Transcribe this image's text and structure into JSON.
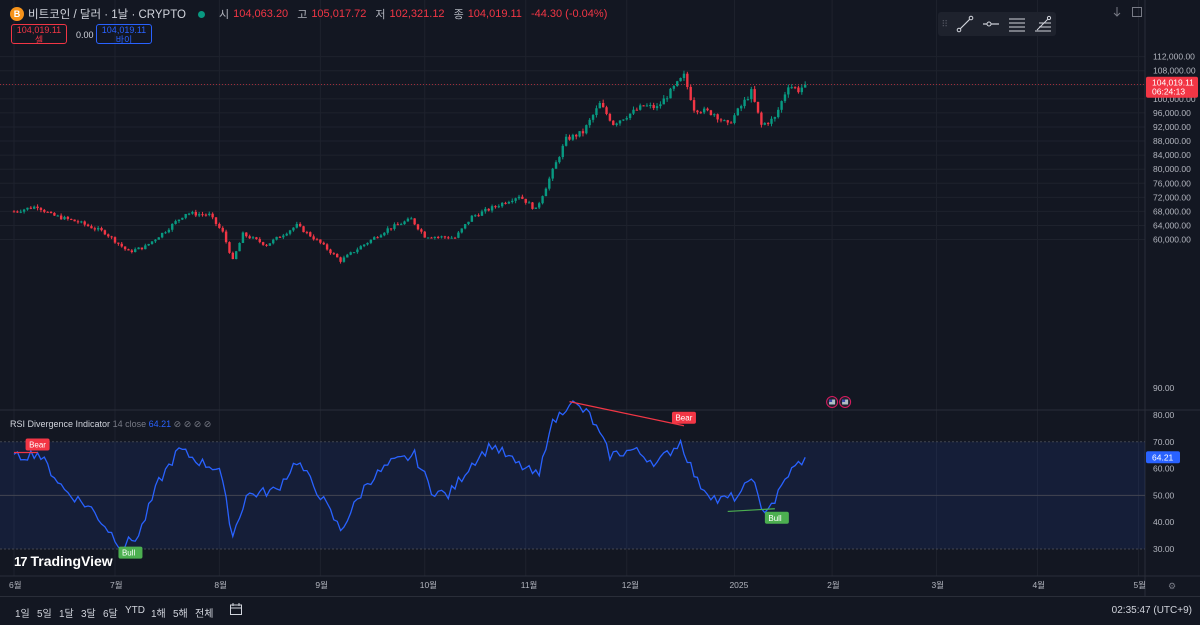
{
  "header": {
    "coin_glyph": "B",
    "symbol": "비트코인 / 달러 · 1날 · CRYPTO",
    "open_label": "시",
    "open": "104,063.20",
    "high_label": "고",
    "high": "105,017.72",
    "low_label": "저",
    "low": "102,321.12",
    "close_label": "종",
    "close": "104,019.11",
    "change": "-44.30 (-0.04%)"
  },
  "trade": {
    "sell_price": "104,019.11",
    "sell_label": "셀",
    "spread": "0.00",
    "buy_price": "104,019.11",
    "buy_label": "바이"
  },
  "toolbar": {
    "grip": "⠿",
    "tools": [
      "trend-line-icon",
      "horizontal-ray-icon",
      "parallel-lines-icon",
      "fib-retracement-icon"
    ]
  },
  "window_icons": [
    "arrow-down-icon",
    "maximize-icon"
  ],
  "indicator": {
    "name": "RSI Divergence Indicator",
    "params": "14 close",
    "value": "64.21",
    "icons": "⊘ ⊘ ⊘ ⊘"
  },
  "logo": {
    "mark": "17",
    "text": "TradingView"
  },
  "bottom": {
    "ranges": [
      "1일",
      "5일",
      "1달",
      "3달",
      "6달",
      "YTD",
      "1해",
      "5해",
      "전체"
    ],
    "time": "02:35:47 (UTC+9)"
  },
  "colors": {
    "up": "#089981",
    "down": "#f23645",
    "rsi": "#2962ff",
    "bear": "#f23645",
    "bull": "#4caf50",
    "background": "#131722"
  },
  "chart_data": [
    {
      "type": "candlestick",
      "ylim": [
        56000,
        114000
      ],
      "y_ticks": [
        "112,000.00",
        "108,000.00",
        "104,000.00",
        "100,000.00",
        "96,000.00",
        "92,000.00",
        "88,000.00",
        "84,000.00",
        "80,000.00",
        "76,000.00",
        "72,000.00",
        "68,000.00",
        "64,000.00",
        "60,000.00"
      ],
      "x_ticks": [
        "6월",
        "7월",
        "8월",
        "9월",
        "10월",
        "11월",
        "12월",
        "2025",
        "2월",
        "3월",
        "4월",
        "5월"
      ],
      "last_price_label": "104,019.11",
      "countdown": "06:24:13",
      "events": [
        "us-flag-icon",
        "us-flag-icon"
      ],
      "anchors": [
        [
          "2024-06-01",
          68000
        ],
        [
          "2024-06-08",
          69500
        ],
        [
          "2024-06-12",
          67000
        ],
        [
          "2024-06-20",
          65000
        ],
        [
          "2024-06-28",
          62000
        ],
        [
          "2024-07-05",
          56500
        ],
        [
          "2024-07-10",
          58000
        ],
        [
          "2024-07-16",
          62500
        ],
        [
          "2024-07-22",
          67500
        ],
        [
          "2024-07-29",
          67000
        ],
        [
          "2024-08-02",
          62000
        ],
        [
          "2024-08-05",
          54000
        ],
        [
          "2024-08-08",
          61500
        ],
        [
          "2024-08-15",
          58500
        ],
        [
          "2024-08-24",
          64000
        ],
        [
          "2024-08-31",
          59000
        ],
        [
          "2024-09-06",
          54000
        ],
        [
          "2024-09-12",
          58000
        ],
        [
          "2024-09-20",
          63000
        ],
        [
          "2024-09-27",
          65800
        ],
        [
          "2024-10-01",
          61000
        ],
        [
          "2024-10-10",
          60500
        ],
        [
          "2024-10-15",
          66500
        ],
        [
          "2024-10-21",
          69000
        ],
        [
          "2024-10-29",
          72500
        ],
        [
          "2024-11-03",
          68500
        ],
        [
          "2024-11-06",
          75000
        ],
        [
          "2024-11-12",
          88500
        ],
        [
          "2024-11-17",
          90500
        ],
        [
          "2024-11-22",
          98500
        ],
        [
          "2024-11-26",
          93000
        ],
        [
          "2024-12-05",
          98000
        ],
        [
          "2024-12-09",
          97500
        ],
        [
          "2024-12-17",
          106500
        ],
        [
          "2024-12-20",
          97300
        ],
        [
          "2024-12-26",
          95800
        ],
        [
          "2024-12-30",
          92500
        ],
        [
          "2025-01-06",
          102000
        ],
        [
          "2025-01-09",
          92500
        ],
        [
          "2025-01-13",
          94500
        ],
        [
          "2025-01-17",
          104000
        ],
        [
          "2025-01-20",
          102500
        ],
        [
          "2025-01-22",
          104019
        ]
      ]
    },
    {
      "type": "line",
      "name": "RSI Divergence Indicator",
      "ylim": [
        30,
        90
      ],
      "y_ticks": [
        "90.00",
        "80.00",
        "70.00",
        "60.00",
        "50.00",
        "40.00",
        "30.00"
      ],
      "bands": {
        "upper": 70,
        "middle": 50,
        "lower": 30
      },
      "current": "64.21",
      "anchors": [
        [
          "2024-06-01",
          64
        ],
        [
          "2024-06-08",
          66
        ],
        [
          "2024-06-16",
          52
        ],
        [
          "2024-06-24",
          45
        ],
        [
          "2024-07-03",
          31
        ],
        [
          "2024-07-08",
          35
        ],
        [
          "2024-07-14",
          55
        ],
        [
          "2024-07-20",
          67
        ],
        [
          "2024-07-27",
          62
        ],
        [
          "2024-08-01",
          60
        ],
        [
          "2024-08-05",
          35
        ],
        [
          "2024-08-09",
          50
        ],
        [
          "2024-08-18",
          52
        ],
        [
          "2024-08-24",
          63
        ],
        [
          "2024-08-31",
          50
        ],
        [
          "2024-09-06",
          37
        ],
        [
          "2024-09-14",
          55
        ],
        [
          "2024-09-21",
          62
        ],
        [
          "2024-09-28",
          65
        ],
        [
          "2024-10-03",
          52
        ],
        [
          "2024-10-08",
          50
        ],
        [
          "2024-10-15",
          62
        ],
        [
          "2024-10-21",
          69
        ],
        [
          "2024-10-28",
          62
        ],
        [
          "2024-11-04",
          57
        ],
        [
          "2024-11-07",
          75
        ],
        [
          "2024-11-13",
          85
        ],
        [
          "2024-11-19",
          80
        ],
        [
          "2024-11-25",
          65
        ],
        [
          "2024-12-02",
          67
        ],
        [
          "2024-12-09",
          62
        ],
        [
          "2024-12-16",
          70
        ],
        [
          "2024-12-21",
          55
        ],
        [
          "2024-12-27",
          48
        ],
        [
          "2025-01-03",
          50
        ],
        [
          "2025-01-06",
          58
        ],
        [
          "2025-01-09",
          44
        ],
        [
          "2025-01-13",
          48
        ],
        [
          "2025-01-17",
          58
        ],
        [
          "2025-01-22",
          64.21
        ]
      ],
      "divergences": [
        {
          "label": "Bear",
          "from": [
            "2024-06-01",
            66
          ],
          "to": [
            "2024-06-08",
            66
          ]
        },
        {
          "label": "Bear",
          "from": [
            "2024-11-13",
            85
          ],
          "to": [
            "2024-12-17",
            76
          ]
        },
        {
          "label": "Bull",
          "from": [
            "2024-12-30",
            44
          ],
          "to": [
            "2025-01-13",
            45
          ]
        },
        {
          "label": "Bull",
          "from": [
            "2024-07-05",
            32
          ],
          "to": [
            "2024-07-05",
            32
          ]
        }
      ]
    }
  ]
}
